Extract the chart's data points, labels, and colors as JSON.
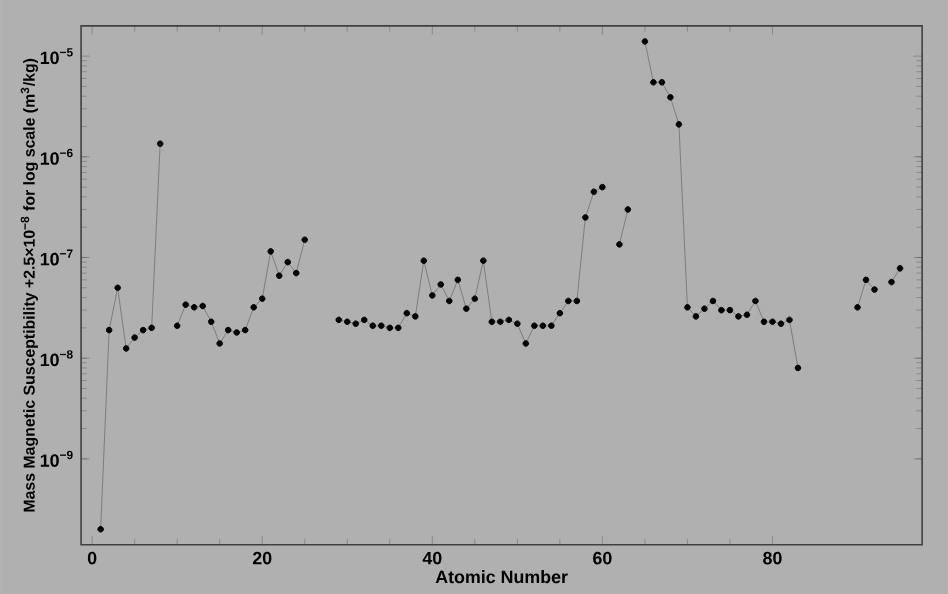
{
  "chart_data": {
    "type": "line",
    "xlabel": "Atomic Number",
    "ylabel": "Mass Magnetic Susceptibility +2.5×10$^{−8}$ for log scale (m$^{3}$/kg)",
    "log": "y",
    "marker": "circle",
    "line_style": "solid",
    "xlim": [
      -1.3,
      97.6
    ],
    "ylim": [
      1.4e-10,
      2e-05
    ],
    "xticks": [
      0,
      20,
      40,
      60,
      80
    ],
    "yticks": [
      {
        "value": 1e-09,
        "label": "10$^{−9}$"
      },
      {
        "value": 1e-08,
        "label": "10$^{−8}$"
      },
      {
        "value": 1e-07,
        "label": "10$^{−7}$"
      },
      {
        "value": 1e-06,
        "label": "10$^{−6}$"
      },
      {
        "value": 1e-05,
        "label": "10$^{−5}$"
      }
    ],
    "x": [
      1,
      2,
      3,
      4,
      5,
      6,
      7,
      8,
      9,
      10,
      11,
      12,
      13,
      14,
      15,
      16,
      17,
      18,
      19,
      20,
      21,
      22,
      23,
      24,
      25,
      26,
      27,
      28,
      29,
      30,
      31,
      32,
      33,
      34,
      35,
      36,
      37,
      38,
      39,
      40,
      41,
      42,
      43,
      44,
      45,
      46,
      47,
      48,
      49,
      50,
      51,
      52,
      53,
      54,
      55,
      56,
      57,
      58,
      59,
      60,
      61,
      62,
      63,
      64,
      65,
      66,
      67,
      68,
      69,
      70,
      71,
      72,
      73,
      74,
      75,
      76,
      77,
      78,
      79,
      80,
      81,
      82,
      83,
      84,
      85,
      86,
      87,
      88,
      89,
      90,
      91,
      92,
      93,
      94,
      95
    ],
    "series": [
      {
        "color": "#000000",
        "values": [
          2e-10,
          1.9e-08,
          5e-08,
          1.25e-08,
          1.6e-08,
          1.9e-08,
          2e-08,
          1.35e-06,
          null,
          2.1e-08,
          3.4e-08,
          3.2e-08,
          3.3e-08,
          2.3e-08,
          1.4e-08,
          1.9e-08,
          1.8e-08,
          1.9e-08,
          3.2e-08,
          3.9e-08,
          1.15e-07,
          6.6e-08,
          9e-08,
          7e-08,
          1.5e-07,
          null,
          null,
          null,
          2.4e-08,
          2.3e-08,
          2.2e-08,
          2.4e-08,
          2.1e-08,
          2.1e-08,
          2e-08,
          2e-08,
          2.8e-08,
          2.6e-08,
          9.3e-08,
          4.2e-08,
          5.4e-08,
          3.7e-08,
          6e-08,
          3.1e-08,
          3.9e-08,
          9.3e-08,
          2.3e-08,
          2.3e-08,
          2.4e-08,
          2.2e-08,
          1.4e-08,
          2.1e-08,
          2.1e-08,
          2.1e-08,
          2.8e-08,
          3.7e-08,
          3.7e-08,
          2.5e-07,
          4.5e-07,
          5e-07,
          null,
          1.35e-07,
          3e-07,
          null,
          1.4e-05,
          5.5e-06,
          5.5e-06,
          3.9e-06,
          2.1e-06,
          3.2e-08,
          2.6e-08,
          3.1e-08,
          3.7e-08,
          3e-08,
          3e-08,
          2.6e-08,
          2.7e-08,
          3.7e-08,
          2.3e-08,
          2.3e-08,
          2.2e-08,
          2.4e-08,
          8e-09,
          null,
          null,
          null,
          null,
          null,
          null,
          3.2e-08,
          6e-08,
          4.8e-08,
          null,
          5.7e-08,
          7.8e-08
        ]
      }
    ]
  }
}
